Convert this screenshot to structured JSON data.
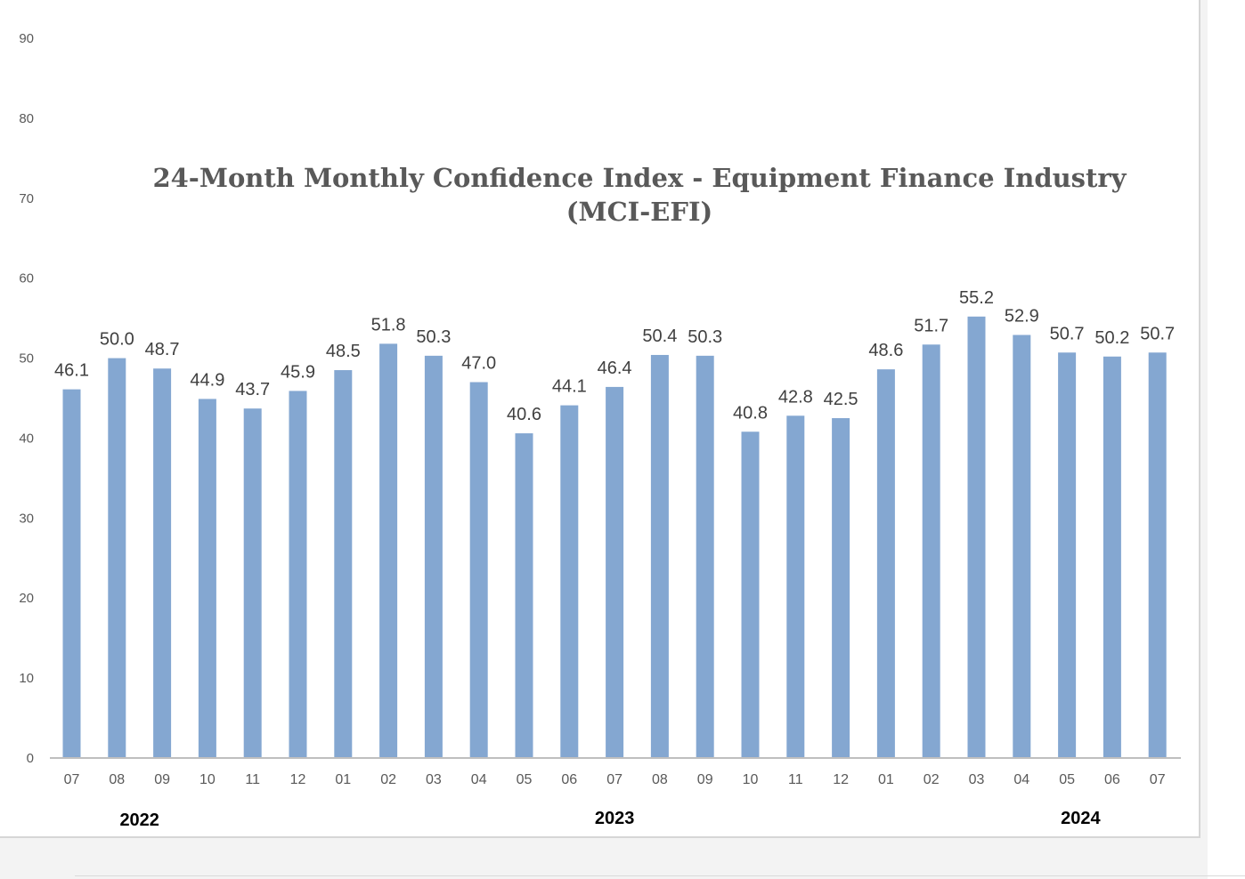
{
  "chart_data": {
    "type": "bar",
    "title_lines": [
      "24-Month Monthly Confidence Index - Equipment Finance Industry",
      "(MCI-EFI)"
    ],
    "categories": [
      "07",
      "08",
      "09",
      "10",
      "11",
      "12",
      "01",
      "02",
      "03",
      "04",
      "05",
      "06",
      "07",
      "08",
      "09",
      "10",
      "11",
      "12",
      "01",
      "02",
      "03",
      "04",
      "05",
      "06",
      "07"
    ],
    "values": [
      46.1,
      50.0,
      48.7,
      44.9,
      43.7,
      45.9,
      48.5,
      51.8,
      50.3,
      47.0,
      40.6,
      44.1,
      46.4,
      50.4,
      50.3,
      40.8,
      42.8,
      42.5,
      48.6,
      51.7,
      55.2,
      52.9,
      50.7,
      50.2,
      50.7
    ],
    "data_labels": [
      "46.1",
      "50.0",
      "48.7",
      "44.9",
      "43.7",
      "45.9",
      "48.5",
      "51.8",
      "50.3",
      "47.0",
      "40.6",
      "44.1",
      "46.4",
      "50.4",
      "50.3",
      "40.8",
      "42.8",
      "42.5",
      "48.6",
      "51.7",
      "55.2",
      "52.9",
      "50.7",
      "50.2",
      "50.7"
    ],
    "year_labels": [
      {
        "label": "2022",
        "category_index": 1.5
      },
      {
        "label": "2023",
        "category_index": 12
      },
      {
        "label": "2024",
        "category_index": 22.3
      }
    ],
    "y_ticks": [
      "0",
      "10",
      "20",
      "30",
      "40",
      "50",
      "60",
      "70",
      "80",
      "90"
    ],
    "ylim": [
      0,
      90
    ],
    "xlabel": "",
    "ylabel": "",
    "grid": false,
    "legend": "none",
    "colors": {
      "bar": "#84a7d1",
      "axis": "#bfbfbf",
      "tick_text": "#595959",
      "label_text": "#404040"
    }
  }
}
